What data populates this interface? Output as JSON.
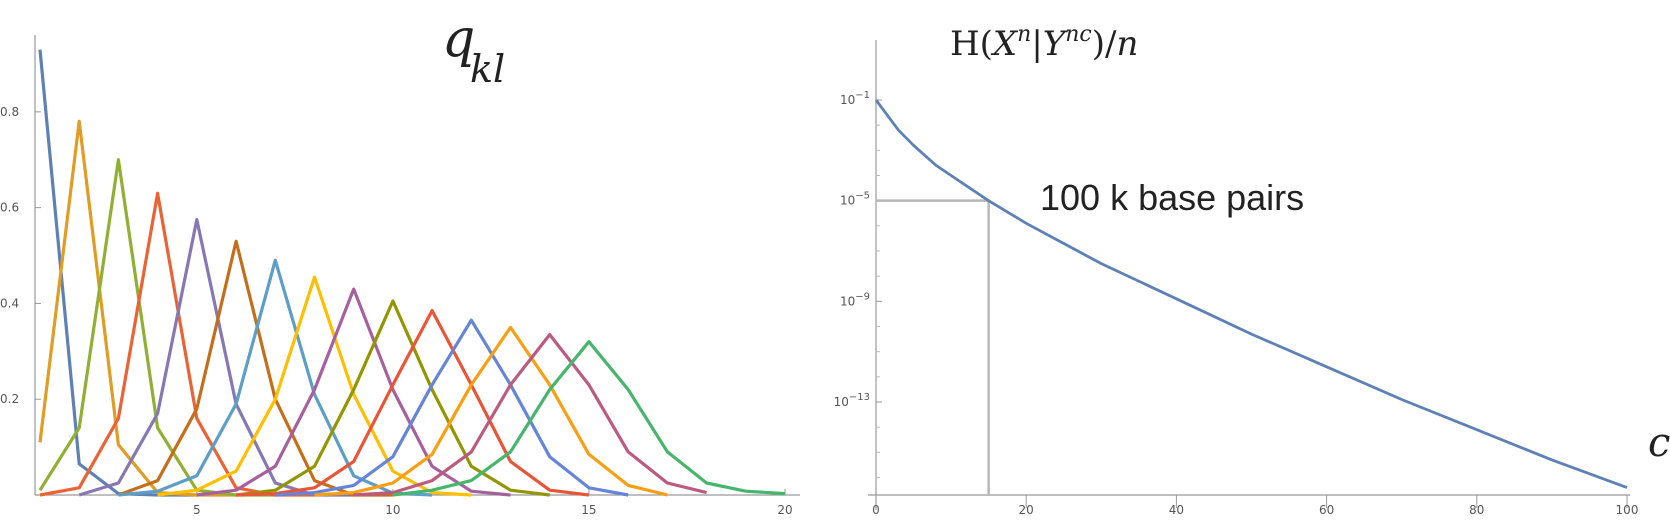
{
  "chart_data": [
    {
      "type": "line",
      "title": "q",
      "title_sub": "kl",
      "xlim": [
        1,
        20
      ],
      "ylim": [
        0,
        0.95
      ],
      "x_ticks": [
        5,
        10,
        15,
        20
      ],
      "y_ticks": [
        0.2,
        0.4,
        0.6,
        0.8
      ],
      "x_tick_labels": [
        "5",
        "10",
        "15",
        "20"
      ],
      "y_tick_labels": [
        "0.2",
        "0.4",
        "0.6",
        "0.8"
      ],
      "series": [
        {
          "color": "#5e81b5",
          "x": [
            1,
            2,
            3,
            4,
            5
          ],
          "y": [
            0.93,
            0.065,
            0.003,
            0,
            0
          ]
        },
        {
          "color": "#e19c24",
          "x": [
            1,
            2,
            3,
            4,
            5,
            6
          ],
          "y": [
            0.11,
            0.78,
            0.105,
            0.005,
            0,
            0
          ]
        },
        {
          "color": "#8fb032",
          "x": [
            1,
            2,
            3,
            4,
            5,
            6,
            7
          ],
          "y": [
            0.01,
            0.14,
            0.7,
            0.14,
            0.01,
            0,
            0
          ]
        },
        {
          "color": "#eb6235",
          "x": [
            1,
            2,
            3,
            4,
            5,
            6,
            7,
            8
          ],
          "y": [
            0,
            0.015,
            0.16,
            0.63,
            0.16,
            0.015,
            0,
            0
          ]
        },
        {
          "color": "#8778b3",
          "x": [
            2,
            3,
            4,
            5,
            6,
            7,
            8,
            9
          ],
          "y": [
            0,
            0.025,
            0.17,
            0.575,
            0.19,
            0.025,
            0,
            0
          ]
        },
        {
          "color": "#c56e1a",
          "x": [
            3,
            4,
            5,
            6,
            7,
            8,
            9,
            10
          ],
          "y": [
            0,
            0.03,
            0.18,
            0.53,
            0.2,
            0.03,
            0,
            0
          ]
        },
        {
          "color": "#5d9ec7",
          "x": [
            3,
            4,
            5,
            6,
            7,
            8,
            9,
            10,
            11
          ],
          "y": [
            0,
            0.008,
            0.04,
            0.19,
            0.49,
            0.21,
            0.04,
            0.004,
            0
          ]
        },
        {
          "color": "#ffbf00",
          "x": [
            4,
            5,
            6,
            7,
            8,
            9,
            10,
            11,
            12
          ],
          "y": [
            0,
            0.01,
            0.05,
            0.2,
            0.455,
            0.21,
            0.05,
            0.005,
            0
          ]
        },
        {
          "color": "#a5609d",
          "x": [
            5,
            6,
            7,
            8,
            9,
            10,
            11,
            12,
            13
          ],
          "y": [
            0,
            0.01,
            0.06,
            0.22,
            0.43,
            0.22,
            0.06,
            0.008,
            0
          ]
        },
        {
          "color": "#929600",
          "x": [
            6,
            7,
            8,
            9,
            10,
            11,
            12,
            13,
            14
          ],
          "y": [
            0,
            0.01,
            0.06,
            0.22,
            0.405,
            0.22,
            0.06,
            0.01,
            0
          ]
        },
        {
          "color": "#e95536",
          "x": [
            6,
            7,
            8,
            9,
            10,
            11,
            12,
            13,
            14,
            15
          ],
          "y": [
            0,
            0.003,
            0.015,
            0.07,
            0.23,
            0.385,
            0.23,
            0.07,
            0.01,
            0
          ]
        },
        {
          "color": "#6685d9",
          "x": [
            7,
            8,
            9,
            10,
            11,
            12,
            13,
            14,
            15,
            16
          ],
          "y": [
            0,
            0.005,
            0.02,
            0.08,
            0.23,
            0.365,
            0.23,
            0.08,
            0.015,
            0
          ]
        },
        {
          "color": "#f89f13",
          "x": [
            8,
            9,
            10,
            11,
            12,
            13,
            14,
            15,
            16,
            17
          ],
          "y": [
            0,
            0.005,
            0.025,
            0.085,
            0.23,
            0.35,
            0.23,
            0.085,
            0.02,
            0
          ]
        },
        {
          "color": "#bc5b80",
          "x": [
            9,
            10,
            11,
            12,
            13,
            14,
            15,
            16,
            17,
            18
          ],
          "y": [
            0,
            0.005,
            0.03,
            0.09,
            0.23,
            0.335,
            0.23,
            0.09,
            0.025,
            0.005
          ]
        },
        {
          "color": "#47b66d",
          "x": [
            10,
            11,
            12,
            13,
            14,
            15,
            16,
            17,
            18,
            19,
            20
          ],
          "y": [
            0,
            0.01,
            0.03,
            0.09,
            0.22,
            0.32,
            0.22,
            0.09,
            0.025,
            0.008,
            0.003
          ]
        }
      ]
    },
    {
      "type": "line",
      "title": "H(X^n|Y^nc)/n",
      "y_scale": "log",
      "xlim": [
        0,
        100
      ],
      "x_ticks": [
        0,
        20,
        40,
        60,
        80,
        100
      ],
      "x_tick_labels": [
        "0",
        "20",
        "40",
        "60",
        "80",
        "100"
      ],
      "y_tick_exponents": [
        -1,
        -5,
        -9,
        -13
      ],
      "y_tick_base": "10",
      "xlabel": "c",
      "annotation": "100 k base pairs",
      "guide_point": {
        "x": 15,
        "y_exp": -5
      },
      "series": [
        {
          "color": "#5e81b5",
          "x": [
            0,
            1,
            3,
            5,
            8,
            10,
            15,
            20,
            25,
            30,
            40,
            50,
            60,
            70,
            80,
            90,
            100
          ],
          "y_exp": [
            -1.0,
            -1.4,
            -2.2,
            -2.8,
            -3.6,
            -4.0,
            -5.0,
            -5.9,
            -6.7,
            -7.5,
            -8.9,
            -10.3,
            -11.6,
            -12.9,
            -14.1,
            -15.3,
            -16.4
          ]
        }
      ]
    }
  ]
}
